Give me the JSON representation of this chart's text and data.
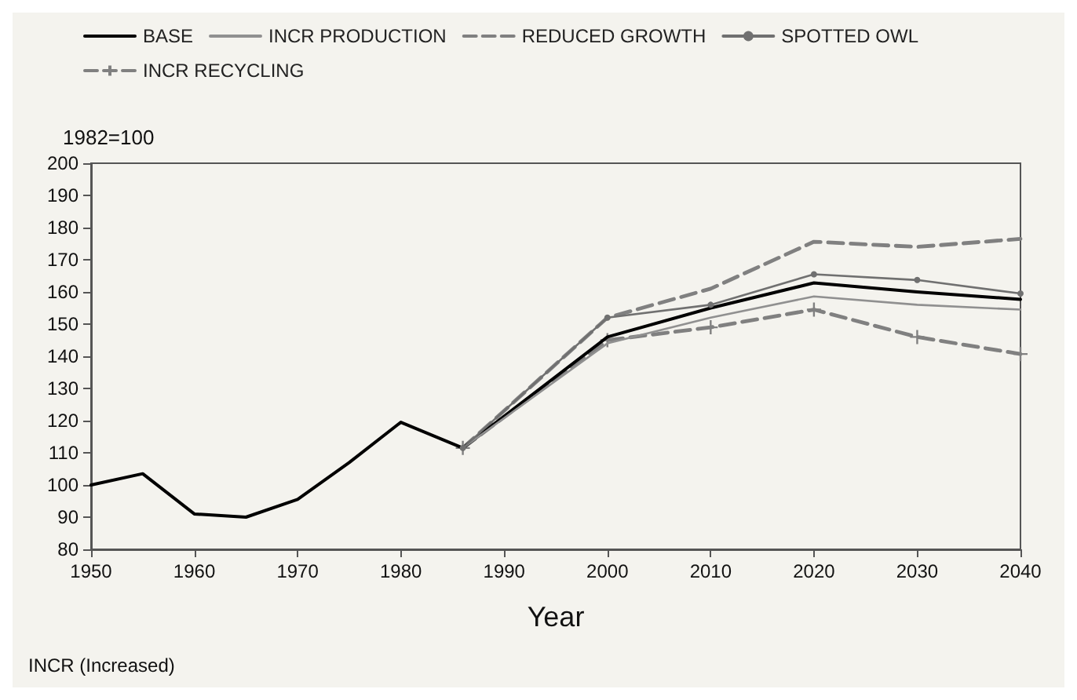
{
  "chart_data": {
    "type": "line",
    "xlabel": "Year",
    "ylabel": "1982=100",
    "annotations": [
      "INCR (Increased)"
    ],
    "xlim": [
      1950,
      2040
    ],
    "xticks": [
      1950,
      1960,
      1970,
      1980,
      1990,
      2000,
      2010,
      2020,
      2030,
      2040
    ],
    "ylim": [
      80,
      200
    ],
    "yticks": [
      80,
      90,
      100,
      110,
      120,
      130,
      140,
      150,
      160,
      170,
      180,
      190,
      200
    ],
    "grid": false,
    "legend": "top",
    "series": [
      {
        "name": "BASE",
        "color": "#000000",
        "marker": "none",
        "line_style": "solid",
        "x": [
          1950,
          1955,
          1960,
          1965,
          1970,
          1975,
          1980,
          1986,
          2000,
          2010,
          2020,
          2030,
          2040
        ],
        "values": [
          100,
          103.5,
          91,
          90,
          95.5,
          107,
          119.5,
          111.5,
          146,
          155,
          162.8,
          160,
          157.7
        ]
      },
      {
        "name": "INCR PRODUCTION",
        "color": "#909090",
        "marker": "none",
        "line_style": "solid",
        "x": [
          1986,
          2000,
          2010,
          2020,
          2030,
          2040
        ],
        "values": [
          111.5,
          144,
          152,
          158.6,
          156,
          154.5
        ]
      },
      {
        "name": "REDUCED GROWTH",
        "color": "#808080",
        "marker": "none",
        "line_style": "dashed",
        "x": [
          1986,
          2000,
          2010,
          2020,
          2030,
          2040
        ],
        "values": [
          111.5,
          152,
          161,
          175.6,
          174,
          176.5
        ]
      },
      {
        "name": "SPOTTED OWL",
        "color": "#707070",
        "marker": "circle",
        "line_style": "solid",
        "x": [
          1986,
          2000,
          2010,
          2020,
          2030,
          2040
        ],
        "values": [
          111.5,
          152,
          156,
          165.5,
          163.7,
          159.5
        ]
      },
      {
        "name": "INCR RECYCLING",
        "color": "#808080",
        "marker": "cross",
        "line_style": "dashed",
        "x": [
          1986,
          2000,
          2010,
          2020,
          2030,
          2040
        ],
        "values": [
          111.5,
          145,
          149,
          154.5,
          146,
          140.7
        ]
      }
    ]
  }
}
